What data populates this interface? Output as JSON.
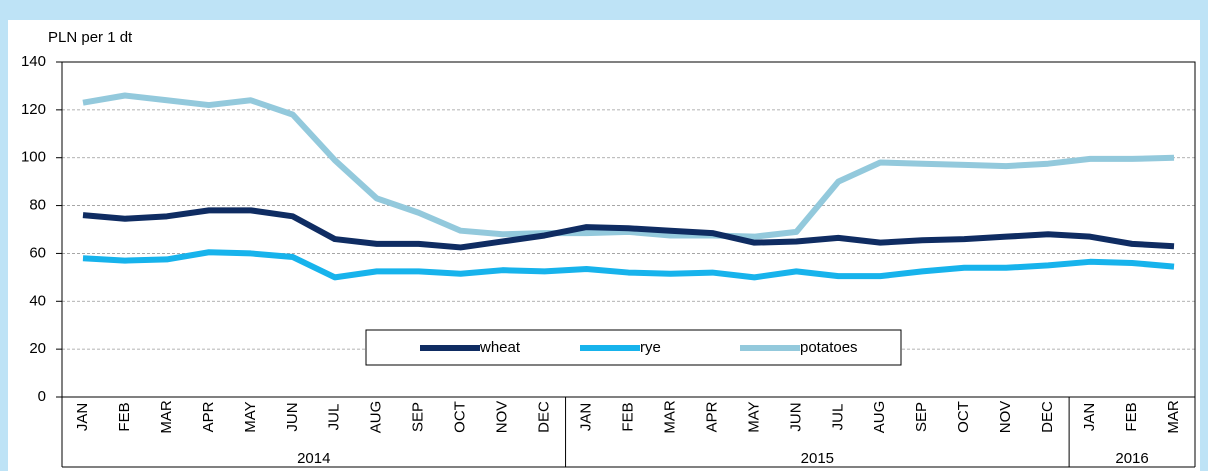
{
  "chart_data": {
    "type": "line",
    "y_label": "PLN per 1 dt",
    "categories": [
      "JAN",
      "FEB",
      "MAR",
      "APR",
      "MAY",
      "JUN",
      "JUL",
      "AUG",
      "SEP",
      "OCT",
      "NOV",
      "DEC",
      "JAN",
      "FEB",
      "MAR",
      "APR",
      "MAY",
      "JUN",
      "JUL",
      "AUG",
      "SEP",
      "OCT",
      "NOV",
      "DEC",
      "JAN",
      "FEB",
      "MAR"
    ],
    "years": [
      "2014",
      "2015",
      "2016"
    ],
    "series": [
      {
        "name": "wheat",
        "color": "#0f2c62",
        "values": [
          76,
          74.5,
          75.5,
          78,
          78,
          75.5,
          66,
          64,
          64,
          62.5,
          65,
          67.5,
          71,
          70.5,
          69.5,
          68.5,
          64.5,
          65,
          66.5,
          64.5,
          65.5,
          66,
          67,
          68,
          67,
          64,
          63
        ]
      },
      {
        "name": "rye",
        "color": "#17b3ec",
        "values": [
          58,
          57,
          57.5,
          60.5,
          60,
          58.5,
          50,
          52.5,
          52.5,
          51.5,
          53,
          52.5,
          53.5,
          52,
          51.5,
          52,
          50,
          52.5,
          50.5,
          50.5,
          52.5,
          54,
          54,
          55,
          56.5,
          56,
          54.5
        ]
      },
      {
        "name": "potatoes",
        "color": "#93c9dc",
        "values": [
          123,
          126,
          124,
          122,
          124,
          118,
          99,
          83,
          77,
          69.5,
          68,
          68.5,
          68.5,
          69,
          67.5,
          67.5,
          67,
          69,
          90,
          98,
          97.5,
          97,
          96.5,
          97.5,
          99.5,
          99.5,
          100
        ]
      }
    ],
    "ylim": [
      0,
      140
    ],
    "yticks": [
      0,
      20,
      40,
      60,
      80,
      100,
      120,
      140
    ],
    "grid": true
  }
}
